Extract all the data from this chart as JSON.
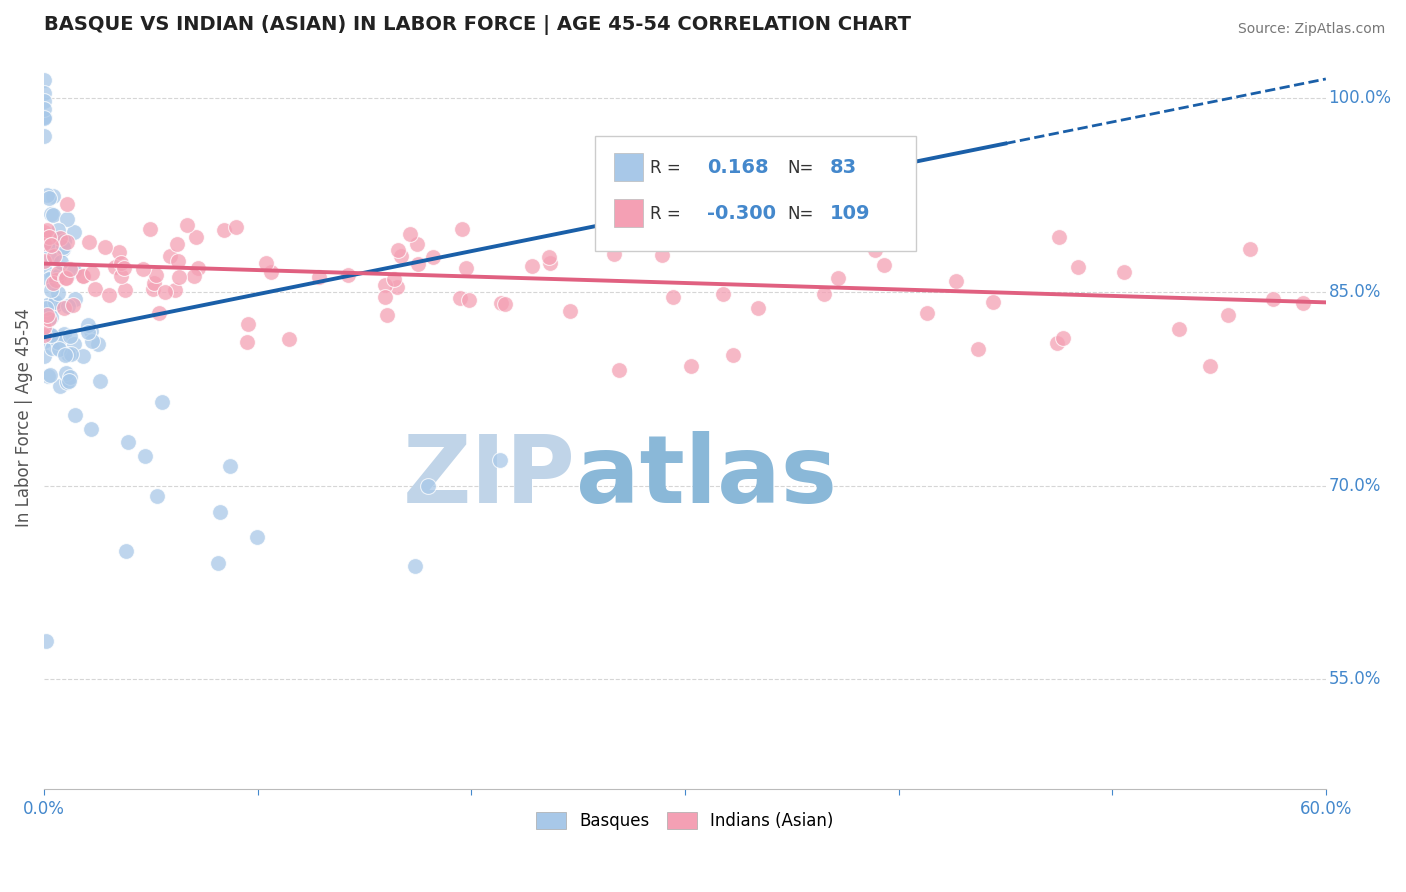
{
  "title": "BASQUE VS INDIAN (ASIAN) IN LABOR FORCE | AGE 45-54 CORRELATION CHART",
  "source": "Source: ZipAtlas.com",
  "ylabel": "In Labor Force | Age 45-54",
  "xlim": [
    0.0,
    0.6
  ],
  "ylim": [
    0.465,
    1.04
  ],
  "ytick_positions": [
    0.55,
    0.7,
    0.85,
    1.0
  ],
  "ytick_labels": [
    "55.0%",
    "70.0%",
    "85.0%",
    "100.0%"
  ],
  "basque_color": "#a8c8e8",
  "indian_color": "#f4a0b4",
  "basque_line_color": "#1a5fa8",
  "indian_line_color": "#e06080",
  "basque_R": 0.168,
  "basque_N": 83,
  "indian_R": -0.3,
  "indian_N": 109,
  "background_color": "#ffffff",
  "grid_color": "#cccccc",
  "title_color": "#222222",
  "axis_color": "#4488cc",
  "watermark_zip": "ZIP",
  "watermark_atlas": "atlas",
  "watermark_color_zip": "#c0d4e8",
  "watermark_color_atlas": "#8ab8d8"
}
